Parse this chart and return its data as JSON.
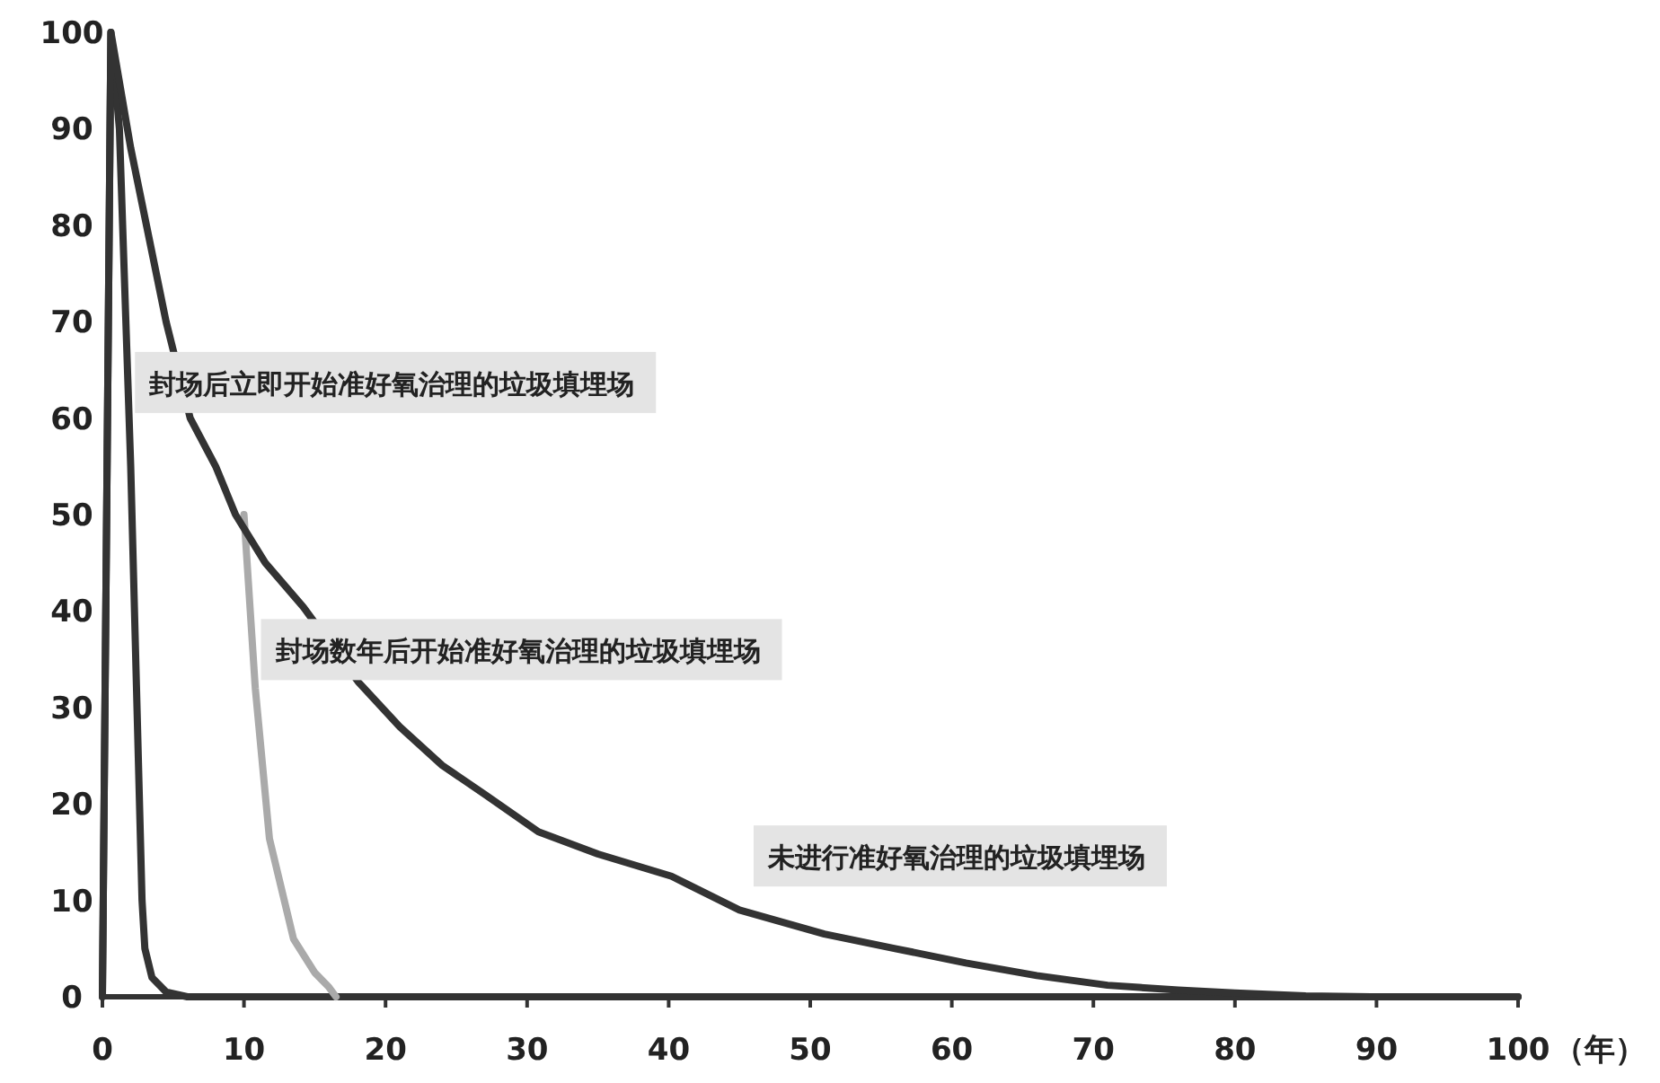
{
  "chart_data": {
    "type": "line",
    "xlabel": "（年）",
    "xlim": [
      0,
      100
    ],
    "ylim": [
      0,
      100
    ],
    "xticks": [
      0,
      10,
      20,
      30,
      40,
      50,
      60,
      70,
      80,
      90,
      100
    ],
    "yticks": [
      0,
      10,
      20,
      30,
      40,
      50,
      60,
      70,
      80,
      90,
      100
    ],
    "grid": false,
    "marker": "none",
    "line_style": "solid",
    "series": [
      {
        "name": "封场后立即开始准好氧治理的垃圾填埋场",
        "color": "#333333",
        "x": [
          0,
          0.6,
          1.2,
          2,
          2.8,
          3,
          3.5,
          4.5,
          6,
          100
        ],
        "values": [
          0,
          100,
          90,
          55,
          10,
          5,
          2,
          0.5,
          0,
          0
        ]
      },
      {
        "name": "封场数年后开始准好氧治理的垃圾填埋场",
        "color": "#aaaaaa",
        "x": [
          10,
          10.8,
          11.8,
          13.5,
          15,
          16,
          16.5
        ],
        "values": [
          50,
          32,
          16.4,
          6,
          2.5,
          1,
          0
        ]
      },
      {
        "name": "未进行准好氧治理的垃圾填埋场",
        "color": "#333333",
        "x": [
          0,
          0.6,
          2,
          4.5,
          6.2,
          8,
          9.4,
          11.5,
          14.2,
          18.1,
          21,
          24,
          27,
          30.8,
          35,
          40.2,
          45,
          51,
          56,
          61,
          66,
          71,
          76,
          80,
          85,
          90,
          100
        ],
        "values": [
          0,
          100,
          88,
          70,
          60,
          55,
          50,
          45,
          40.4,
          32.6,
          28,
          24,
          21,
          17.1,
          14.8,
          12.5,
          9,
          6.5,
          5,
          3.5,
          2.2,
          1.2,
          0.7,
          0.4,
          0.1,
          0,
          0
        ]
      }
    ]
  }
}
